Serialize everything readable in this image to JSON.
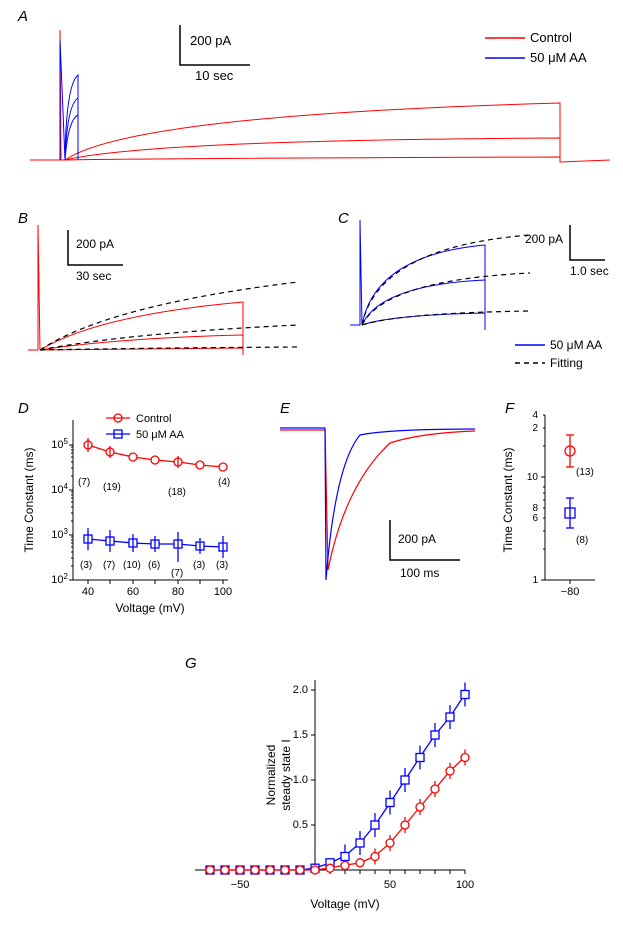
{
  "colors": {
    "control": "#ff0000",
    "aa": "#0000ff",
    "fitting": "#000000",
    "axis": "#000000",
    "background": "#ffffff"
  },
  "legend": {
    "control": "Control",
    "aa": "50 μM AA",
    "fitting": "Fitting"
  },
  "panels": {
    "A": {
      "label": "A",
      "yscale": "200 pA",
      "xscale": "10 sec"
    },
    "B": {
      "label": "B",
      "yscale": "200 pA",
      "xscale": "30 sec"
    },
    "C": {
      "label": "C",
      "yscale": "200 pA",
      "xscale": "1.0 sec"
    },
    "D": {
      "label": "D",
      "xlabel": "Voltage (mV)",
      "ylabel": "Time Constant (ms)",
      "xticks": [
        40,
        60,
        80,
        100
      ],
      "yticks_labels": [
        "10²",
        "10³",
        "10⁴",
        "10⁵"
      ],
      "control": {
        "x": [
          40,
          50,
          60,
          70,
          80,
          90,
          100
        ],
        "y": [
          100000,
          70000,
          55000,
          48000,
          42000,
          37000,
          33000
        ],
        "n": [
          "(7)",
          "(19)",
          "",
          "(18)",
          "",
          "",
          "(4)"
        ]
      },
      "aa": {
        "x": [
          40,
          50,
          60,
          70,
          80,
          90,
          100
        ],
        "y": [
          800,
          700,
          650,
          600,
          550,
          500,
          480
        ],
        "n": [
          "(3)",
          "(7)",
          "(10)",
          "(6)",
          "(7)",
          "(3)",
          "(3)"
        ]
      }
    },
    "E": {
      "label": "E",
      "yscale": "200 pA",
      "xscale": "100 ms"
    },
    "F": {
      "label": "F",
      "ylabel": "Time Constant (ms)",
      "xtick": "−80",
      "control": {
        "y": 18,
        "n": "(13)"
      },
      "aa": {
        "y": 4.5,
        "n": "(8)"
      }
    },
    "G": {
      "label": "G",
      "xlabel": "Voltage (mV)",
      "ylabel": "Normalized\nsteady state I",
      "xticks": [
        -50,
        50,
        100
      ],
      "yticks": [
        0.5,
        1.0,
        1.5,
        2.0
      ],
      "control": {
        "x": [
          -70,
          -60,
          -50,
          -40,
          -30,
          -20,
          -10,
          0,
          10,
          20,
          30,
          40,
          50,
          60,
          70,
          80,
          90,
          100
        ],
        "y": [
          0,
          0,
          0,
          0,
          0,
          0,
          0,
          0,
          0.02,
          0.05,
          0.08,
          0.15,
          0.3,
          0.5,
          0.7,
          0.9,
          1.1,
          1.25
        ]
      },
      "aa": {
        "x": [
          -70,
          -60,
          -50,
          -40,
          -30,
          -20,
          -10,
          0,
          10,
          20,
          30,
          40,
          50,
          60,
          70,
          80,
          90,
          100
        ],
        "y": [
          0,
          0,
          0,
          0,
          0,
          0,
          0,
          0.02,
          0.08,
          0.15,
          0.3,
          0.5,
          0.75,
          1.0,
          1.25,
          1.5,
          1.7,
          1.95
        ]
      }
    }
  }
}
